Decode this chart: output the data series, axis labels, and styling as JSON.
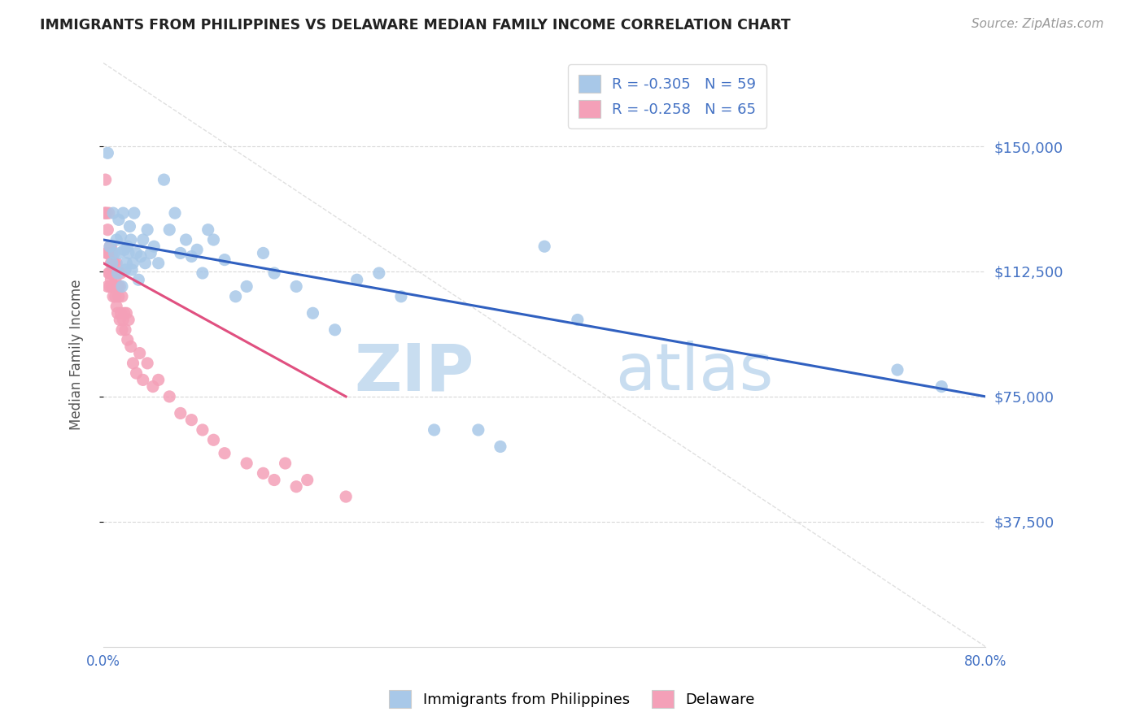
{
  "title": "IMMIGRANTS FROM PHILIPPINES VS DELAWARE MEDIAN FAMILY INCOME CORRELATION CHART",
  "source": "Source: ZipAtlas.com",
  "ylabel": "Median Family Income",
  "xlim": [
    0.0,
    0.8
  ],
  "ylim": [
    0,
    175000
  ],
  "yticks": [
    37500,
    75000,
    112500,
    150000
  ],
  "ytick_labels": [
    "$37,500",
    "$75,000",
    "$112,500",
    "$150,000"
  ],
  "xticks": [
    0.0,
    0.1,
    0.2,
    0.3,
    0.4,
    0.5,
    0.6,
    0.7,
    0.8
  ],
  "xtick_labels": [
    "0.0%",
    "",
    "",
    "",
    "",
    "",
    "",
    "",
    "80.0%"
  ],
  "legend_R1": "-0.305",
  "legend_N1": "59",
  "legend_R2": "-0.258",
  "legend_N2": "65",
  "blue_color": "#a8c8e8",
  "pink_color": "#f4a0b8",
  "blue_line_color": "#3060c0",
  "pink_line_color": "#e05080",
  "dashed_line_color": "#d8d8d8",
  "watermark_color": "#c8ddf0",
  "title_color": "#222222",
  "tick_color": "#4472c4",
  "grid_color": "#d8d8d8",
  "blue_scatter_x": [
    0.004,
    0.006,
    0.008,
    0.009,
    0.01,
    0.012,
    0.013,
    0.014,
    0.015,
    0.016,
    0.017,
    0.018,
    0.019,
    0.02,
    0.021,
    0.022,
    0.023,
    0.024,
    0.025,
    0.026,
    0.027,
    0.028,
    0.03,
    0.032,
    0.034,
    0.036,
    0.038,
    0.04,
    0.043,
    0.046,
    0.05,
    0.055,
    0.06,
    0.065,
    0.07,
    0.075,
    0.08,
    0.085,
    0.09,
    0.095,
    0.1,
    0.11,
    0.12,
    0.13,
    0.145,
    0.155,
    0.175,
    0.19,
    0.21,
    0.23,
    0.25,
    0.27,
    0.3,
    0.34,
    0.36,
    0.4,
    0.43,
    0.72,
    0.76
  ],
  "blue_scatter_y": [
    148000,
    120000,
    115000,
    130000,
    118000,
    122000,
    112000,
    128000,
    118000,
    123000,
    108000,
    130000,
    119000,
    113000,
    115000,
    120000,
    118000,
    126000,
    122000,
    113000,
    115000,
    130000,
    118000,
    110000,
    117000,
    122000,
    115000,
    125000,
    118000,
    120000,
    115000,
    140000,
    125000,
    130000,
    118000,
    122000,
    117000,
    119000,
    112000,
    125000,
    122000,
    116000,
    105000,
    108000,
    118000,
    112000,
    108000,
    100000,
    95000,
    110000,
    112000,
    105000,
    65000,
    65000,
    60000,
    120000,
    98000,
    83000,
    78000
  ],
  "pink_scatter_x": [
    0.001,
    0.002,
    0.002,
    0.003,
    0.003,
    0.004,
    0.004,
    0.004,
    0.005,
    0.005,
    0.005,
    0.006,
    0.006,
    0.006,
    0.007,
    0.007,
    0.007,
    0.008,
    0.008,
    0.008,
    0.009,
    0.009,
    0.01,
    0.01,
    0.011,
    0.011,
    0.012,
    0.012,
    0.013,
    0.013,
    0.014,
    0.014,
    0.015,
    0.015,
    0.016,
    0.016,
    0.017,
    0.017,
    0.018,
    0.019,
    0.02,
    0.021,
    0.022,
    0.023,
    0.025,
    0.027,
    0.03,
    0.033,
    0.036,
    0.04,
    0.045,
    0.05,
    0.06,
    0.07,
    0.08,
    0.09,
    0.1,
    0.11,
    0.13,
    0.145,
    0.155,
    0.165,
    0.175,
    0.185,
    0.22
  ],
  "pink_scatter_y": [
    130000,
    130000,
    140000,
    118000,
    130000,
    118000,
    125000,
    108000,
    112000,
    118000,
    130000,
    112000,
    120000,
    108000,
    115000,
    120000,
    110000,
    112000,
    108000,
    118000,
    112000,
    105000,
    108000,
    115000,
    110000,
    105000,
    102000,
    115000,
    108000,
    100000,
    112000,
    105000,
    108000,
    98000,
    100000,
    112000,
    95000,
    105000,
    98000,
    100000,
    95000,
    100000,
    92000,
    98000,
    90000,
    85000,
    82000,
    88000,
    80000,
    85000,
    78000,
    80000,
    75000,
    70000,
    68000,
    65000,
    62000,
    58000,
    55000,
    52000,
    50000,
    55000,
    48000,
    50000,
    45000
  ],
  "blue_line_x": [
    0.0,
    0.8
  ],
  "blue_line_y": [
    122000,
    75000
  ],
  "pink_line_x": [
    0.0,
    0.22
  ],
  "pink_line_y": [
    115000,
    75000
  ],
  "dash_line_x": [
    0.0,
    0.8
  ],
  "dash_line_y": [
    175000,
    0
  ]
}
